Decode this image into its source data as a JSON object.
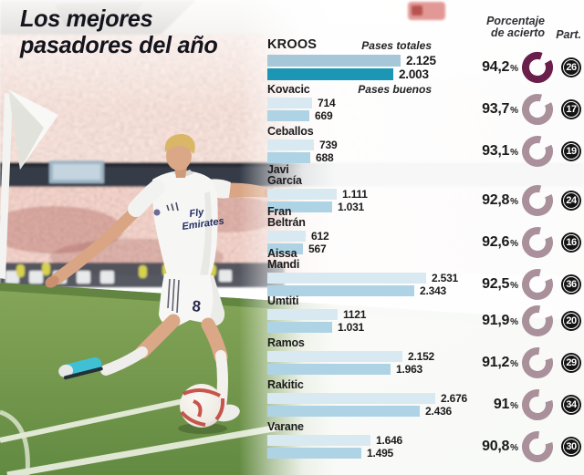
{
  "title": {
    "line1": "Los mejores",
    "line2": "pasadores del año"
  },
  "percent_suffix": "%",
  "chart_data": {
    "type": "bar",
    "orientation": "horizontal",
    "title": "Los mejores pasadores del año",
    "x_max": 2676,
    "columns": {
      "accuracy_line1": "Porcentaje",
      "accuracy_line2": "de acierto",
      "matches": "Part."
    },
    "series": [
      {
        "key": "total",
        "name": "Pases totales"
      },
      {
        "key": "good",
        "name": "Pases buenos"
      }
    ],
    "players": [
      {
        "name": "KROOS",
        "total": 2125,
        "total_label": "2.125",
        "good": 2003,
        "good_label": "2.003",
        "accuracy_pct": 94.2,
        "accuracy_label": "94,2",
        "matches": 26,
        "highlight": true
      },
      {
        "name": "Kovacic",
        "total": 714,
        "total_label": "714",
        "good": 669,
        "good_label": "669",
        "accuracy_pct": 93.7,
        "accuracy_label": "93,7",
        "matches": 17,
        "highlight": false
      },
      {
        "name": "Ceballos",
        "total": 739,
        "total_label": "739",
        "good": 688,
        "good_label": "688",
        "accuracy_pct": 93.1,
        "accuracy_label": "93,1",
        "matches": 19,
        "highlight": false
      },
      {
        "name": "Javi\nGarcía",
        "total": 1111,
        "total_label": "1.111",
        "good": 1031,
        "good_label": "1.031",
        "accuracy_pct": 92.8,
        "accuracy_label": "92,8",
        "matches": 24,
        "highlight": false
      },
      {
        "name": "Fran\nBeltrán",
        "total": 612,
        "total_label": "612",
        "good": 567,
        "good_label": "567",
        "accuracy_pct": 92.6,
        "accuracy_label": "92,6",
        "matches": 16,
        "highlight": false
      },
      {
        "name": "Aissa\nMandi",
        "total": 2531,
        "total_label": "2.531",
        "good": 2343,
        "good_label": "2.343",
        "accuracy_pct": 92.5,
        "accuracy_label": "92,5",
        "matches": 36,
        "highlight": false
      },
      {
        "name": "Umtiti",
        "total": 1121,
        "total_label": "1121",
        "good": 1031,
        "good_label": "1.031",
        "accuracy_pct": 91.9,
        "accuracy_label": "91,9",
        "matches": 20,
        "highlight": false
      },
      {
        "name": "Ramos",
        "total": 2152,
        "total_label": "2.152",
        "good": 1963,
        "good_label": "1.963",
        "accuracy_pct": 91.2,
        "accuracy_label": "91,2",
        "matches": 29,
        "highlight": false
      },
      {
        "name": "Rakitic",
        "total": 2676,
        "total_label": "2.676",
        "good": 2436,
        "good_label": "2.436",
        "accuracy_pct": 91.0,
        "accuracy_label": "91",
        "matches": 34,
        "highlight": false
      },
      {
        "name": "Varane",
        "total": 1646,
        "total_label": "1.646",
        "good": 1495,
        "good_label": "1.495",
        "accuracy_pct": 90.8,
        "accuracy_label": "90,8",
        "matches": 30,
        "highlight": false
      }
    ]
  },
  "photo": {
    "shirt_sponsor_line1": "Fly",
    "shirt_sponsor_line2": "Emirates",
    "shirt_number": "8"
  },
  "colors": {
    "bar_total": "#d9e9f1",
    "bar_good": "#aed3e5",
    "bar_total_highlight": "#a6c7d7",
    "bar_good_highlight": "#1b96b5",
    "donut": "#a9909a",
    "donut_highlight": "#6a1e4c",
    "matches_badge": "#131313",
    "title_text": "#14141d",
    "pitch_green": "#76994e"
  }
}
